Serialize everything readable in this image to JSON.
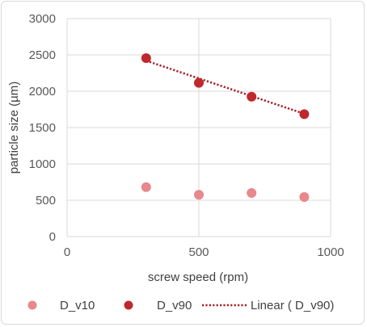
{
  "chart_data": {
    "type": "scatter",
    "xlabel": "screw speed (rpm)",
    "ylabel": "particle size (µm)",
    "xlim": [
      0,
      1000
    ],
    "ylim": [
      0,
      3000
    ],
    "x_ticks": [
      "0",
      "500",
      "1000"
    ],
    "y_ticks": [
      "0",
      "500",
      "1000",
      "1500",
      "2000",
      "2500",
      "3000"
    ],
    "grid": true,
    "legend_position": "bottom",
    "series": [
      {
        "name": "D_v10",
        "color": "#e8878c",
        "x": [
          300,
          500,
          700,
          900
        ],
        "y": [
          680,
          575,
          600,
          545
        ]
      },
      {
        "name": "D_v90",
        "color": "#c0282d",
        "x": [
          300,
          500,
          700,
          900
        ],
        "y": [
          2455,
          2115,
          1925,
          1685
        ]
      }
    ],
    "trendline": {
      "name": "Linear ( D_v90)",
      "color": "#a31f24",
      "style": "dotted",
      "x": [
        300,
        900
      ],
      "y": [
        2420,
        1690
      ]
    }
  }
}
